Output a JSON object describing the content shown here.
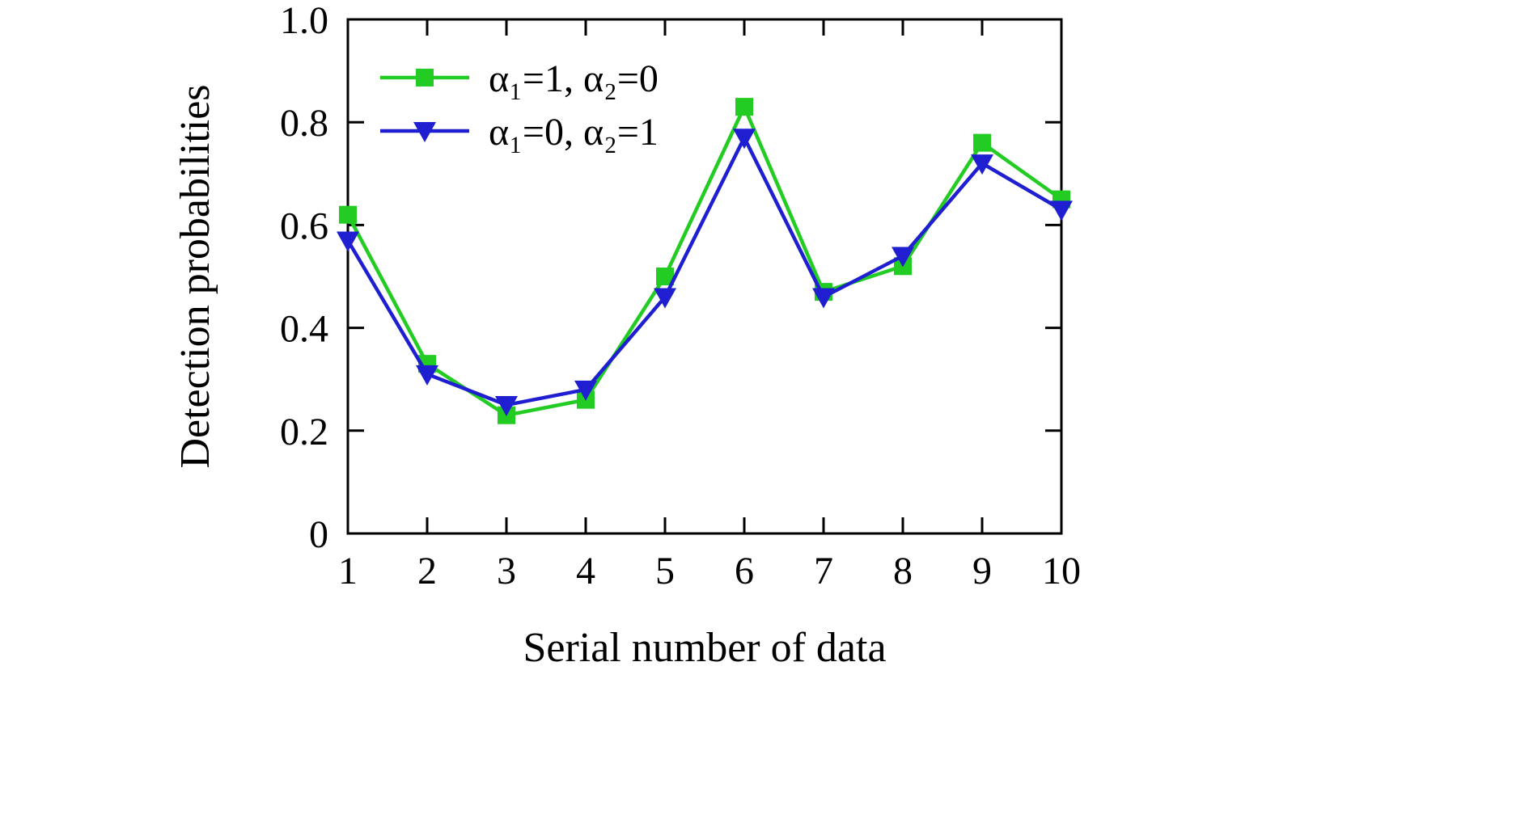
{
  "figure": {
    "background": "#ffffff",
    "border_color": "#000000"
  },
  "chart_data": {
    "type": "line",
    "title": "",
    "xlabel": "Serial number of data",
    "ylabel": "Detection probabilities",
    "x": [
      1,
      2,
      3,
      4,
      5,
      6,
      7,
      8,
      9,
      10
    ],
    "xlim": [
      1,
      10
    ],
    "ylim": [
      0,
      1
    ],
    "x_ticks": [
      1,
      2,
      3,
      4,
      5,
      6,
      7,
      8,
      9,
      10
    ],
    "x_tick_labels": [
      "1",
      "2",
      "3",
      "4",
      "5",
      "6",
      "7",
      "8",
      "9",
      "10"
    ],
    "y_ticks": [
      0,
      0.2,
      0.4,
      0.6,
      0.8,
      1.0
    ],
    "y_tick_labels": [
      "0",
      "0.2",
      "0.4",
      "0.6",
      "0.8",
      "1.0"
    ],
    "grid": false,
    "legend_position": "top-left-inside",
    "series": [
      {
        "name": "α₁=1, α₂=0",
        "marker": "square",
        "color": "#22cc22",
        "values": [
          0.62,
          0.33,
          0.23,
          0.26,
          0.5,
          0.83,
          0.47,
          0.52,
          0.76,
          0.65
        ]
      },
      {
        "name": "α₁=0, α₂=1",
        "marker": "triangle-down",
        "color": "#1f1fd1",
        "values": [
          0.57,
          0.31,
          0.25,
          0.28,
          0.46,
          0.77,
          0.46,
          0.54,
          0.72,
          0.63
        ]
      }
    ]
  }
}
